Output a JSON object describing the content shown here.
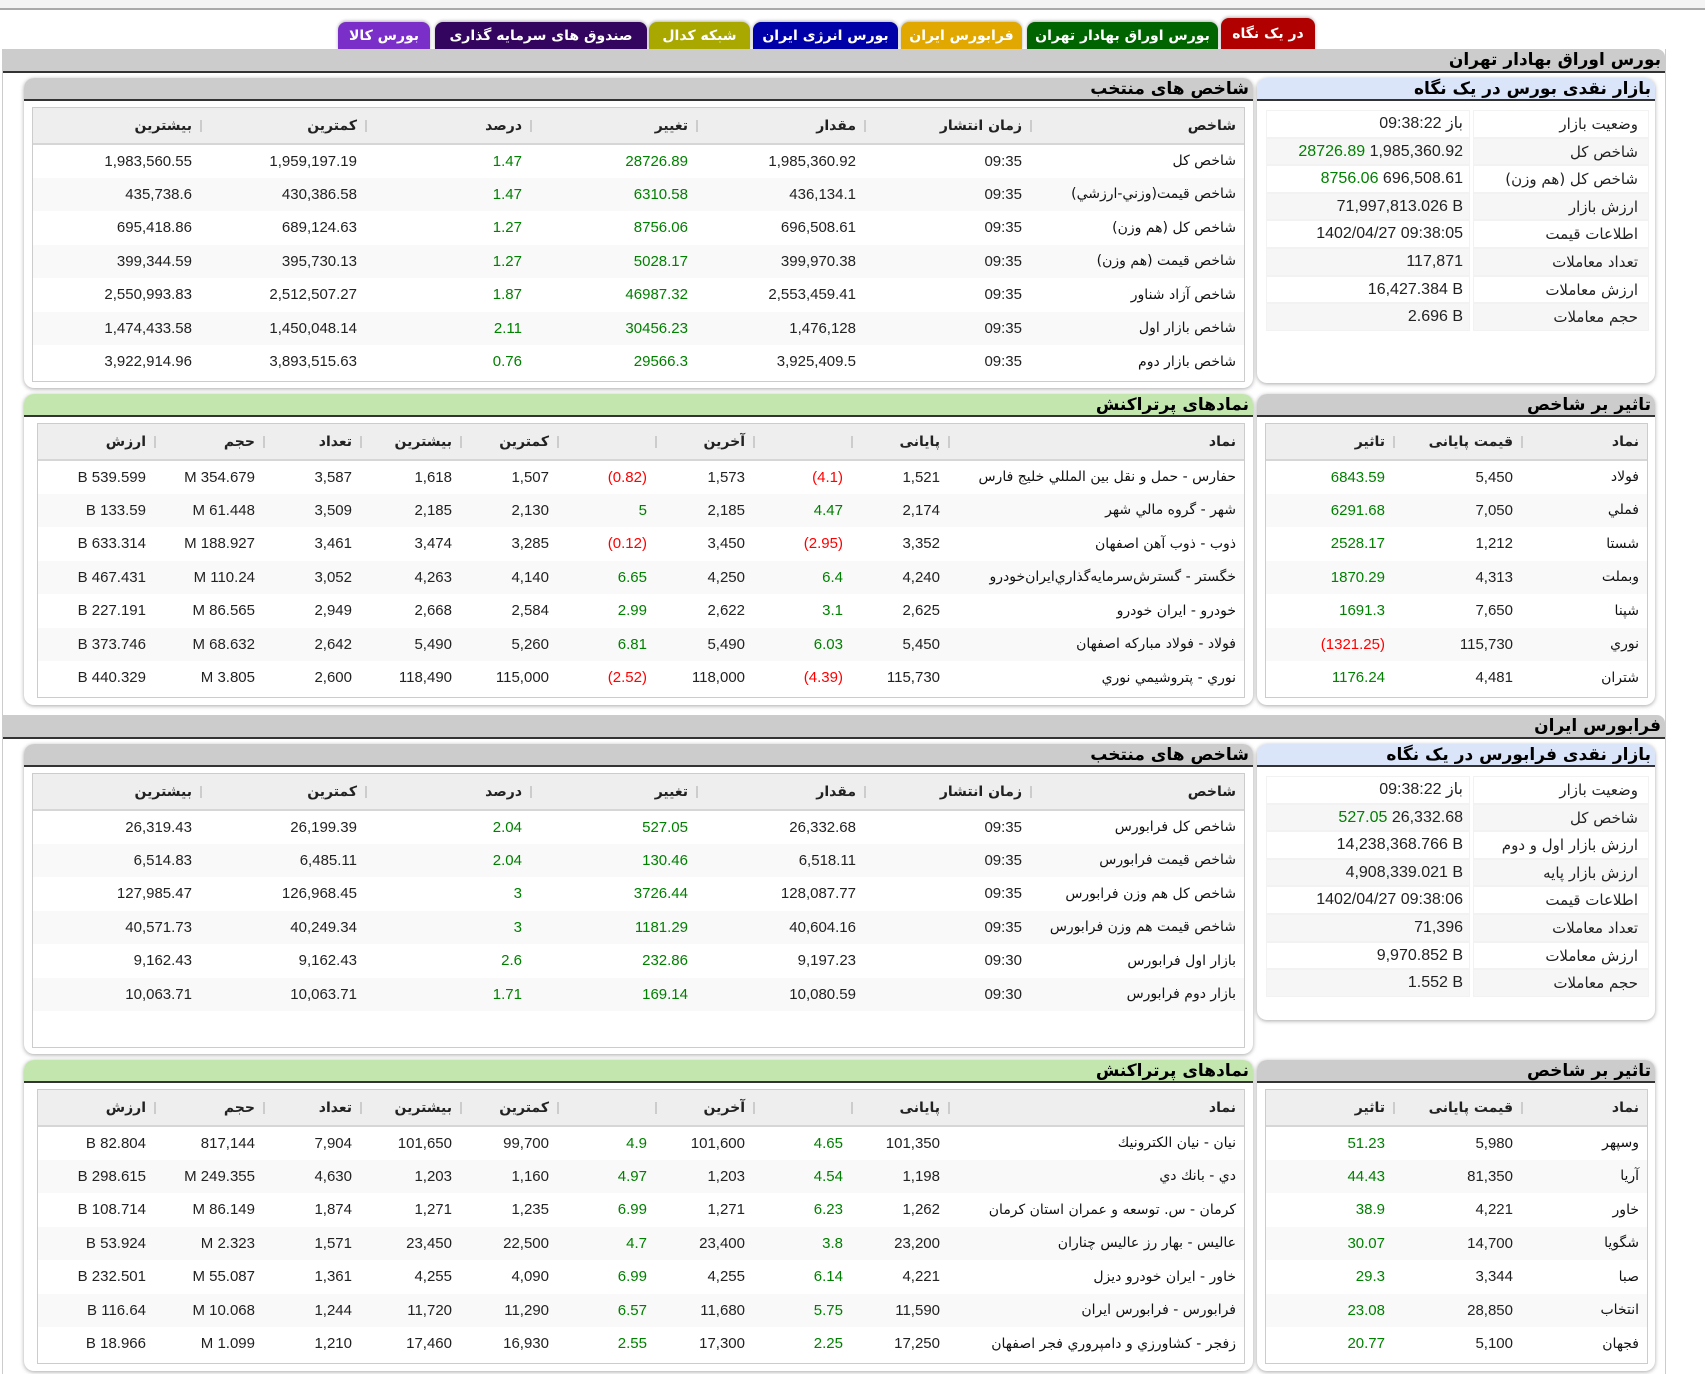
{
  "tabs": [
    {
      "label": "در یک نگاه",
      "color": "#b00000"
    },
    {
      "label": "بورس اوراق بهادار تهران",
      "color": "#006400"
    },
    {
      "label": "فرابورس ایران",
      "color": "#e0a800"
    },
    {
      "label": "بورس انرژی ایران",
      "color": "#0000a8"
    },
    {
      "label": "شبکه کدال",
      "color": "#a8a800"
    },
    {
      "label": "صندوق های سرمایه گذاری",
      "color": "#33055e"
    },
    {
      "label": "بورس کالا",
      "color": "#7a2fc8"
    }
  ],
  "sections": [
    {
      "title": "بورس اوراق بهادار تهران",
      "summary": {
        "title": "بازار نقدی بورس در یک نگاه",
        "rows": [
          {
            "label": "وضعیت بازار",
            "value": "باز 09:38:22"
          },
          {
            "label": "شاخص کل",
            "value": "1,985,360.92",
            "change": "28726.89"
          },
          {
            "label": "شاخص کل (هم وزن)",
            "value": "696,508.61",
            "change": "8756.06"
          },
          {
            "label": "ارزش بازار",
            "value": "71,997,813.026 B"
          },
          {
            "label": "اطلاعات قیمت",
            "value": "1402/04/27 09:38:05"
          },
          {
            "label": "تعداد معاملات",
            "value": "117,871"
          },
          {
            "label": "ارزش معاملات",
            "value": "16,427.384 B"
          },
          {
            "label": "حجم معاملات",
            "value": "2.696 B"
          }
        ]
      },
      "indices": {
        "title": "شاخص های منتخب",
        "headers": [
          "شاخص",
          "زمان انتشار",
          "مقدار",
          "تغییر",
          "درصد",
          "کمترین",
          "بیشترین"
        ],
        "rows": [
          [
            "شاخص كل",
            "09:35",
            "1,985,360.92",
            "28726.89",
            "1.47",
            "1,959,197.19",
            "1,983,560.55"
          ],
          [
            "شاخص قيمت(وزني-ارزشي)",
            "09:35",
            "436,134.1",
            "6310.58",
            "1.47",
            "430,386.58",
            "435,738.6"
          ],
          [
            "شاخص كل (هم وزن)",
            "09:35",
            "696,508.61",
            "8756.06",
            "1.27",
            "689,124.63",
            "695,418.86"
          ],
          [
            "شاخص قيمت (هم وزن)",
            "09:35",
            "399,970.38",
            "5028.17",
            "1.27",
            "395,730.13",
            "399,344.59"
          ],
          [
            "شاخص آزاد شناور",
            "09:35",
            "2,553,459.41",
            "46987.32",
            "1.87",
            "2,512,507.27",
            "2,550,993.83"
          ],
          [
            "شاخص بازار اول",
            "09:35",
            "1,476,128",
            "30456.23",
            "2.11",
            "1,450,048.14",
            "1,474,433.58"
          ],
          [
            "شاخص بازار دوم",
            "09:35",
            "3,925,409.5",
            "29566.3",
            "0.76",
            "3,893,515.63",
            "3,922,914.96"
          ]
        ]
      },
      "impact": {
        "title": "تاثیر بر شاخص",
        "headers": [
          "نماد",
          "قیمت پایانی",
          "تاثیر"
        ],
        "rows": [
          [
            "فولاد",
            "5,450",
            "6843.59"
          ],
          [
            "فملي",
            "7,050",
            "6291.68"
          ],
          [
            "شستا",
            "1,212",
            "2528.17"
          ],
          [
            "وبملت",
            "4,313",
            "1870.29"
          ],
          [
            "شپنا",
            "7,650",
            "1691.3"
          ],
          [
            "نوري",
            "115,730",
            "(1321.25)"
          ],
          [
            "شتران",
            "4,481",
            "1176.24"
          ]
        ]
      },
      "traded": {
        "title": "نمادهای پرتراکنش",
        "headers": [
          "نماد",
          "پایانی",
          "",
          "آخرین",
          "",
          "کمترین",
          "بیشترین",
          "تعداد",
          "حجم",
          "ارزش"
        ],
        "rows": [
          [
            "حفارس - حمل و نقل بين المللي خليج فارس",
            "1,521",
            "(4.1)",
            "1,573",
            "(0.82)",
            "1,507",
            "1,618",
            "3,587",
            "354.679 M",
            "539.599 B"
          ],
          [
            "شهر - گروه مالي شهر",
            "2,174",
            "4.47",
            "2,185",
            "5",
            "2,130",
            "2,185",
            "3,509",
            "61.448 M",
            "133.59 B"
          ],
          [
            "ذوب - ذوب آهن اصفهان",
            "3,352",
            "(2.95)",
            "3,450",
            "(0.12)",
            "3,285",
            "3,474",
            "3,461",
            "188.927 M",
            "633.314 B"
          ],
          [
            "خگستر - گسترش‌سرمايه‌گذاري‌ايران‌خودرو",
            "4,240",
            "6.4",
            "4,250",
            "6.65",
            "4,140",
            "4,263",
            "3,052",
            "110.24 M",
            "467.431 B"
          ],
          [
            "خودرو - ايران‌ خودرو",
            "2,625",
            "3.1",
            "2,622",
            "2.99",
            "2,584",
            "2,668",
            "2,949",
            "86.565 M",
            "227.191 B"
          ],
          [
            "فولاد - فولاد مباركه اصفهان",
            "5,450",
            "6.03",
            "5,490",
            "6.81",
            "5,260",
            "5,490",
            "2,642",
            "68.632 M",
            "373.746 B"
          ],
          [
            "نوري - پتروشيمي نوري",
            "115,730",
            "(4.39)",
            "118,000",
            "(2.52)",
            "115,000",
            "118,490",
            "2,600",
            "3.805 M",
            "440.329 B"
          ]
        ]
      }
    },
    {
      "title": "فرابورس ایران",
      "summary": {
        "title": "بازار نقدی فرابورس در یک نگاه",
        "rows": [
          {
            "label": "وضعیت بازار",
            "value": "باز 09:38:22"
          },
          {
            "label": "شاخص کل",
            "value": "26,332.68",
            "change": "527.05"
          },
          {
            "label": "ارزش بازار اول و دوم",
            "value": "14,238,368.766 B"
          },
          {
            "label": "ارزش بازار پایه",
            "value": "4,908,339.021 B"
          },
          {
            "label": "اطلاعات قیمت",
            "value": "1402/04/27 09:38:06"
          },
          {
            "label": "تعداد معاملات",
            "value": "71,396"
          },
          {
            "label": "ارزش معاملات",
            "value": "9,970.852 B"
          },
          {
            "label": "حجم معاملات",
            "value": "1.552 B"
          }
        ]
      },
      "indices": {
        "title": "شاخص های منتخب",
        "headers": [
          "شاخص",
          "زمان انتشار",
          "مقدار",
          "تغییر",
          "درصد",
          "کمترین",
          "بیشترین"
        ],
        "rows": [
          [
            "شاخص كل فرابورس",
            "09:35",
            "26,332.68",
            "527.05",
            "2.04",
            "26,199.39",
            "26,319.43"
          ],
          [
            "شاخص قيمت فرابورس",
            "09:35",
            "6,518.11",
            "130.46",
            "2.04",
            "6,485.11",
            "6,514.83"
          ],
          [
            "شاخص كل هم وزن فرابورس",
            "09:35",
            "128,087.77",
            "3726.44",
            "3",
            "126,968.45",
            "127,985.47"
          ],
          [
            "شاخص قيمت هم وزن فرابورس",
            "09:35",
            "40,604.16",
            "1181.29",
            "3",
            "40,249.34",
            "40,571.73"
          ],
          [
            "بازار اول فرابورس",
            "09:30",
            "9,197.23",
            "232.86",
            "2.6",
            "9,162.43",
            "9,162.43"
          ],
          [
            "بازار دوم فرابورس",
            "09:30",
            "10,080.59",
            "169.14",
            "1.71",
            "10,063.71",
            "10,063.71"
          ]
        ]
      },
      "impact": {
        "title": "تاثیر بر شاخص",
        "headers": [
          "نماد",
          "قیمت پایانی",
          "تاثیر"
        ],
        "rows": [
          [
            "وسپهر",
            "5,980",
            "51.23"
          ],
          [
            "آريا",
            "81,350",
            "44.43"
          ],
          [
            "خاور",
            "4,221",
            "38.9"
          ],
          [
            "شگويا",
            "14,700",
            "30.07"
          ],
          [
            "صبا",
            "3,344",
            "29.3"
          ],
          [
            "انتخاب",
            "28,850",
            "23.08"
          ],
          [
            "فجهان",
            "5,100",
            "20.77"
          ]
        ]
      },
      "traded": {
        "title": "نمادهای پرتراکنش",
        "headers": [
          "نماد",
          "پایانی",
          "",
          "آخرین",
          "",
          "کمترین",
          "بیشترین",
          "تعداد",
          "حجم",
          "ارزش"
        ],
        "rows": [
          [
            "نيان - نيان الكترونيك",
            "101,350",
            "4.65",
            "101,600",
            "4.9",
            "99,700",
            "101,650",
            "7,904",
            "817,144",
            "82.804 B"
          ],
          [
            "دي - بانك دي",
            "1,198",
            "4.54",
            "1,203",
            "4.97",
            "1,160",
            "1,203",
            "4,630",
            "249.355 M",
            "298.615 B"
          ],
          [
            "كرمان - س. توسعه و عمران استان كرمان",
            "1,262",
            "6.23",
            "1,271",
            "6.99",
            "1,235",
            "1,271",
            "1,874",
            "86.149 M",
            "108.714 B"
          ],
          [
            "عاليس - بهار رز عاليس چناران",
            "23,200",
            "3.8",
            "23,400",
            "4.7",
            "22,500",
            "23,450",
            "1,571",
            "2.323 M",
            "53.924 B"
          ],
          [
            "خاور - ايران‌ خودرو ديزل",
            "4,221",
            "6.14",
            "4,255",
            "6.99",
            "4,090",
            "4,255",
            "1,361",
            "55.087 M",
            "232.501 B"
          ],
          [
            "فرابورس - فرابورس ايران",
            "11,590",
            "5.75",
            "11,680",
            "6.57",
            "11,290",
            "11,720",
            "1,244",
            "10.068 M",
            "116.64 B"
          ],
          [
            "زفجر - كشاورزي و دامپروري فجر اصفهان",
            "17,250",
            "2.25",
            "17,300",
            "2.55",
            "16,930",
            "17,460",
            "1,210",
            "1.099 M",
            "18.966 B"
          ]
        ]
      }
    }
  ]
}
